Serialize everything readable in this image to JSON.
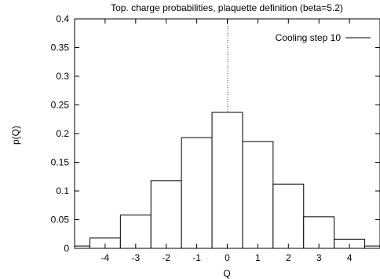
{
  "chart_data": {
    "type": "bar",
    "title": "Top. charge probabilities, plaquette definition (beta=5.2)",
    "xlabel": "Q",
    "ylabel": "p(Q)",
    "xlim": [
      -5.0,
      5.0
    ],
    "ylim": [
      0,
      0.4
    ],
    "x_ticks": [
      "-4",
      "-3",
      "-2",
      "-1",
      "0",
      "1",
      "2",
      "3",
      "4"
    ],
    "y_ticks": [
      "0",
      "0.05",
      "0.1",
      "0.15",
      "0.2",
      "0.25",
      "0.3",
      "0.35",
      "0.4"
    ],
    "grid": false,
    "legend_position": "top-right",
    "reference_line": {
      "x": 0,
      "style": "dotted"
    },
    "series": [
      {
        "name": "Cooling step 10",
        "color": "#000000",
        "x": [
          -5,
          -4,
          -3,
          -2,
          -1,
          0,
          1,
          2,
          3,
          4,
          5
        ],
        "values": [
          0.004,
          0.018,
          0.058,
          0.118,
          0.193,
          0.237,
          0.186,
          0.112,
          0.055,
          0.016,
          0.004
        ]
      }
    ]
  }
}
